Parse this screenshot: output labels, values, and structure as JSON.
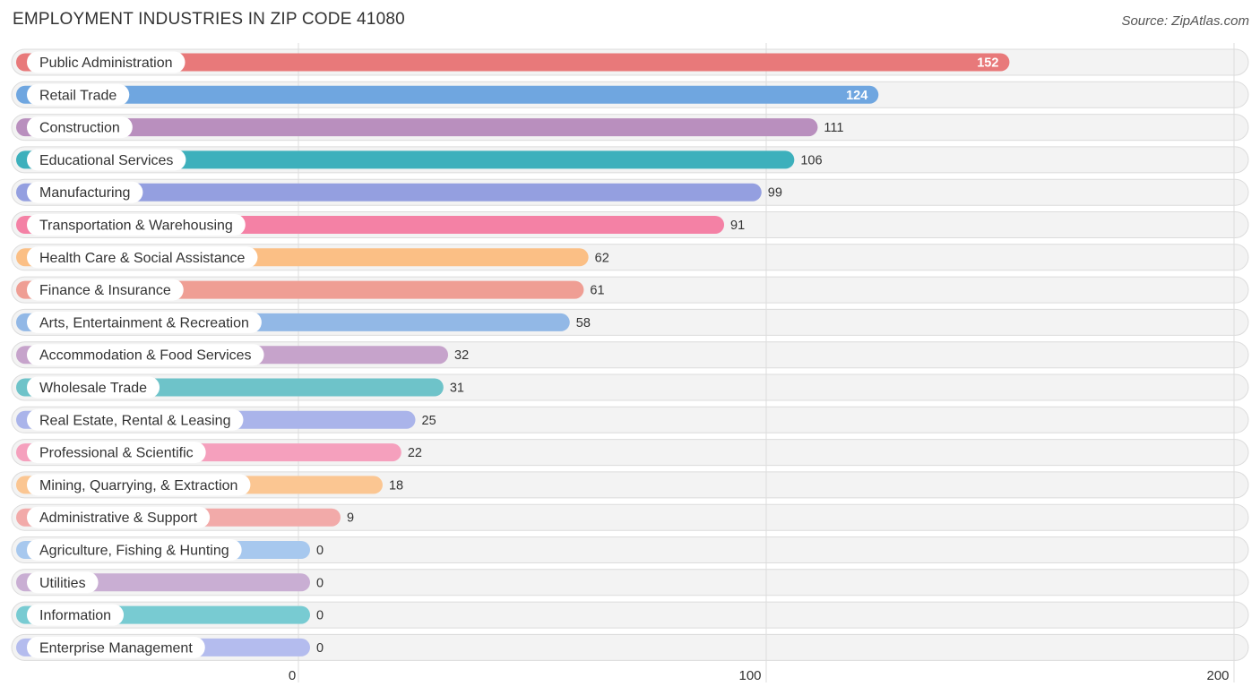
{
  "title": "EMPLOYMENT INDUSTRIES IN ZIP CODE 41080",
  "source": "Source: ZipAtlas.com",
  "chart_data": {
    "type": "bar",
    "orientation": "horizontal",
    "title": "EMPLOYMENT INDUSTRIES IN ZIP CODE 41080",
    "xlabel": "",
    "ylabel": "",
    "xlim": [
      0,
      200
    ],
    "ticks": [
      0,
      100,
      200
    ],
    "tick_labels": [
      "0",
      "100",
      "200"
    ],
    "grid": true,
    "categories": [
      "Public Administration",
      "Retail Trade",
      "Construction",
      "Educational Services",
      "Manufacturing",
      "Transportation & Warehousing",
      "Health Care & Social Assistance",
      "Finance & Insurance",
      "Arts, Entertainment & Recreation",
      "Accommodation & Food Services",
      "Wholesale Trade",
      "Real Estate, Rental & Leasing",
      "Professional & Scientific",
      "Mining, Quarrying, & Extraction",
      "Administrative & Support",
      "Agriculture, Fishing & Hunting",
      "Utilities",
      "Information",
      "Enterprise Management"
    ],
    "values": [
      152,
      124,
      111,
      106,
      99,
      91,
      62,
      61,
      58,
      32,
      31,
      25,
      22,
      18,
      9,
      0,
      0,
      0,
      0
    ],
    "value_labels": [
      "152",
      "124",
      "111",
      "106",
      "99",
      "91",
      "62",
      "61",
      "58",
      "32",
      "31",
      "25",
      "22",
      "18",
      "9",
      "0",
      "0",
      "0",
      "0"
    ],
    "colors": [
      "#e8797a",
      "#6fa6e0",
      "#b98fbe",
      "#3db0bc",
      "#949fe0",
      "#f481a5",
      "#fbbf85",
      "#ef9e94",
      "#92b8e6",
      "#c6a3cb",
      "#6ec3c9",
      "#aab4ea",
      "#f5a0bd",
      "#fbc692",
      "#f2aaa9",
      "#a7c8ee",
      "#c9aed3",
      "#78cbd2",
      "#b4bcee"
    ]
  }
}
